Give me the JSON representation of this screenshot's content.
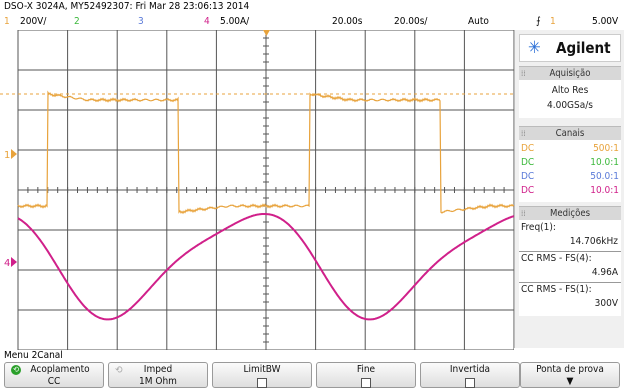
{
  "header": {
    "title": "DSO-X 3024A, MY52492307: Fri Mar 28 23:06:13 2014"
  },
  "channels": [
    {
      "num": "1",
      "scale": "200V/",
      "color": "#e8a33c"
    },
    {
      "num": "2",
      "scale": "",
      "color": "#3cb83c"
    },
    {
      "num": "3",
      "scale": "",
      "color": "#5a7ad8"
    },
    {
      "num": "4",
      "scale": "5.00A/",
      "color": "#d0208a"
    }
  ],
  "timebase": {
    "delay": "20.00s",
    "scale": "20.00s/",
    "mode": "Auto",
    "trigger_channel": "1",
    "trigger_level": "5.00V"
  },
  "brand": {
    "name": "Agilent"
  },
  "sidebar": {
    "acq_title": "Aquisição",
    "acq_mode": "Alto Res",
    "acq_rate": "4.00GSa/s",
    "channels_title": "Canais",
    "channel_rows": [
      {
        "coupling": "DC",
        "probe": "500:1",
        "color": "#e8a33c"
      },
      {
        "coupling": "DC",
        "probe": "10.0:1",
        "color": "#3cb83c"
      },
      {
        "coupling": "DC",
        "probe": "50.0:1",
        "color": "#5a7ad8"
      },
      {
        "coupling": "DC",
        "probe": "10.0:1",
        "color": "#d0208a"
      }
    ],
    "meas_title": "Medições",
    "measurements": [
      {
        "label": "Freq(1):",
        "value": "14.706kHz"
      },
      {
        "label": "CC RMS - FS(4):",
        "value": "4.96A"
      },
      {
        "label": "CC RMS - FS(1):",
        "value": "300V"
      }
    ]
  },
  "menu": {
    "title": "Menu 2Canal"
  },
  "softkeys": [
    {
      "label": "Acoplamento",
      "value": "CC",
      "icon": "rotate-icon"
    },
    {
      "label": "Imped",
      "value": "1M Ohm",
      "icon": "rotate-icon"
    },
    {
      "label": "LimitBW",
      "value": "",
      "icon": "checkbox"
    },
    {
      "label": "Fine",
      "value": "",
      "icon": "checkbox"
    },
    {
      "label": "Invertida",
      "value": "",
      "icon": "checkbox"
    },
    {
      "label": "Ponta de prova",
      "value": "",
      "icon": "down-arrow-icon"
    }
  ],
  "markers": {
    "ch1_ground": "1",
    "ch4_ground": "4"
  },
  "colors": {
    "ch1": "#e8a33c",
    "ch4": "#d0208a",
    "grid": "#555555"
  }
}
